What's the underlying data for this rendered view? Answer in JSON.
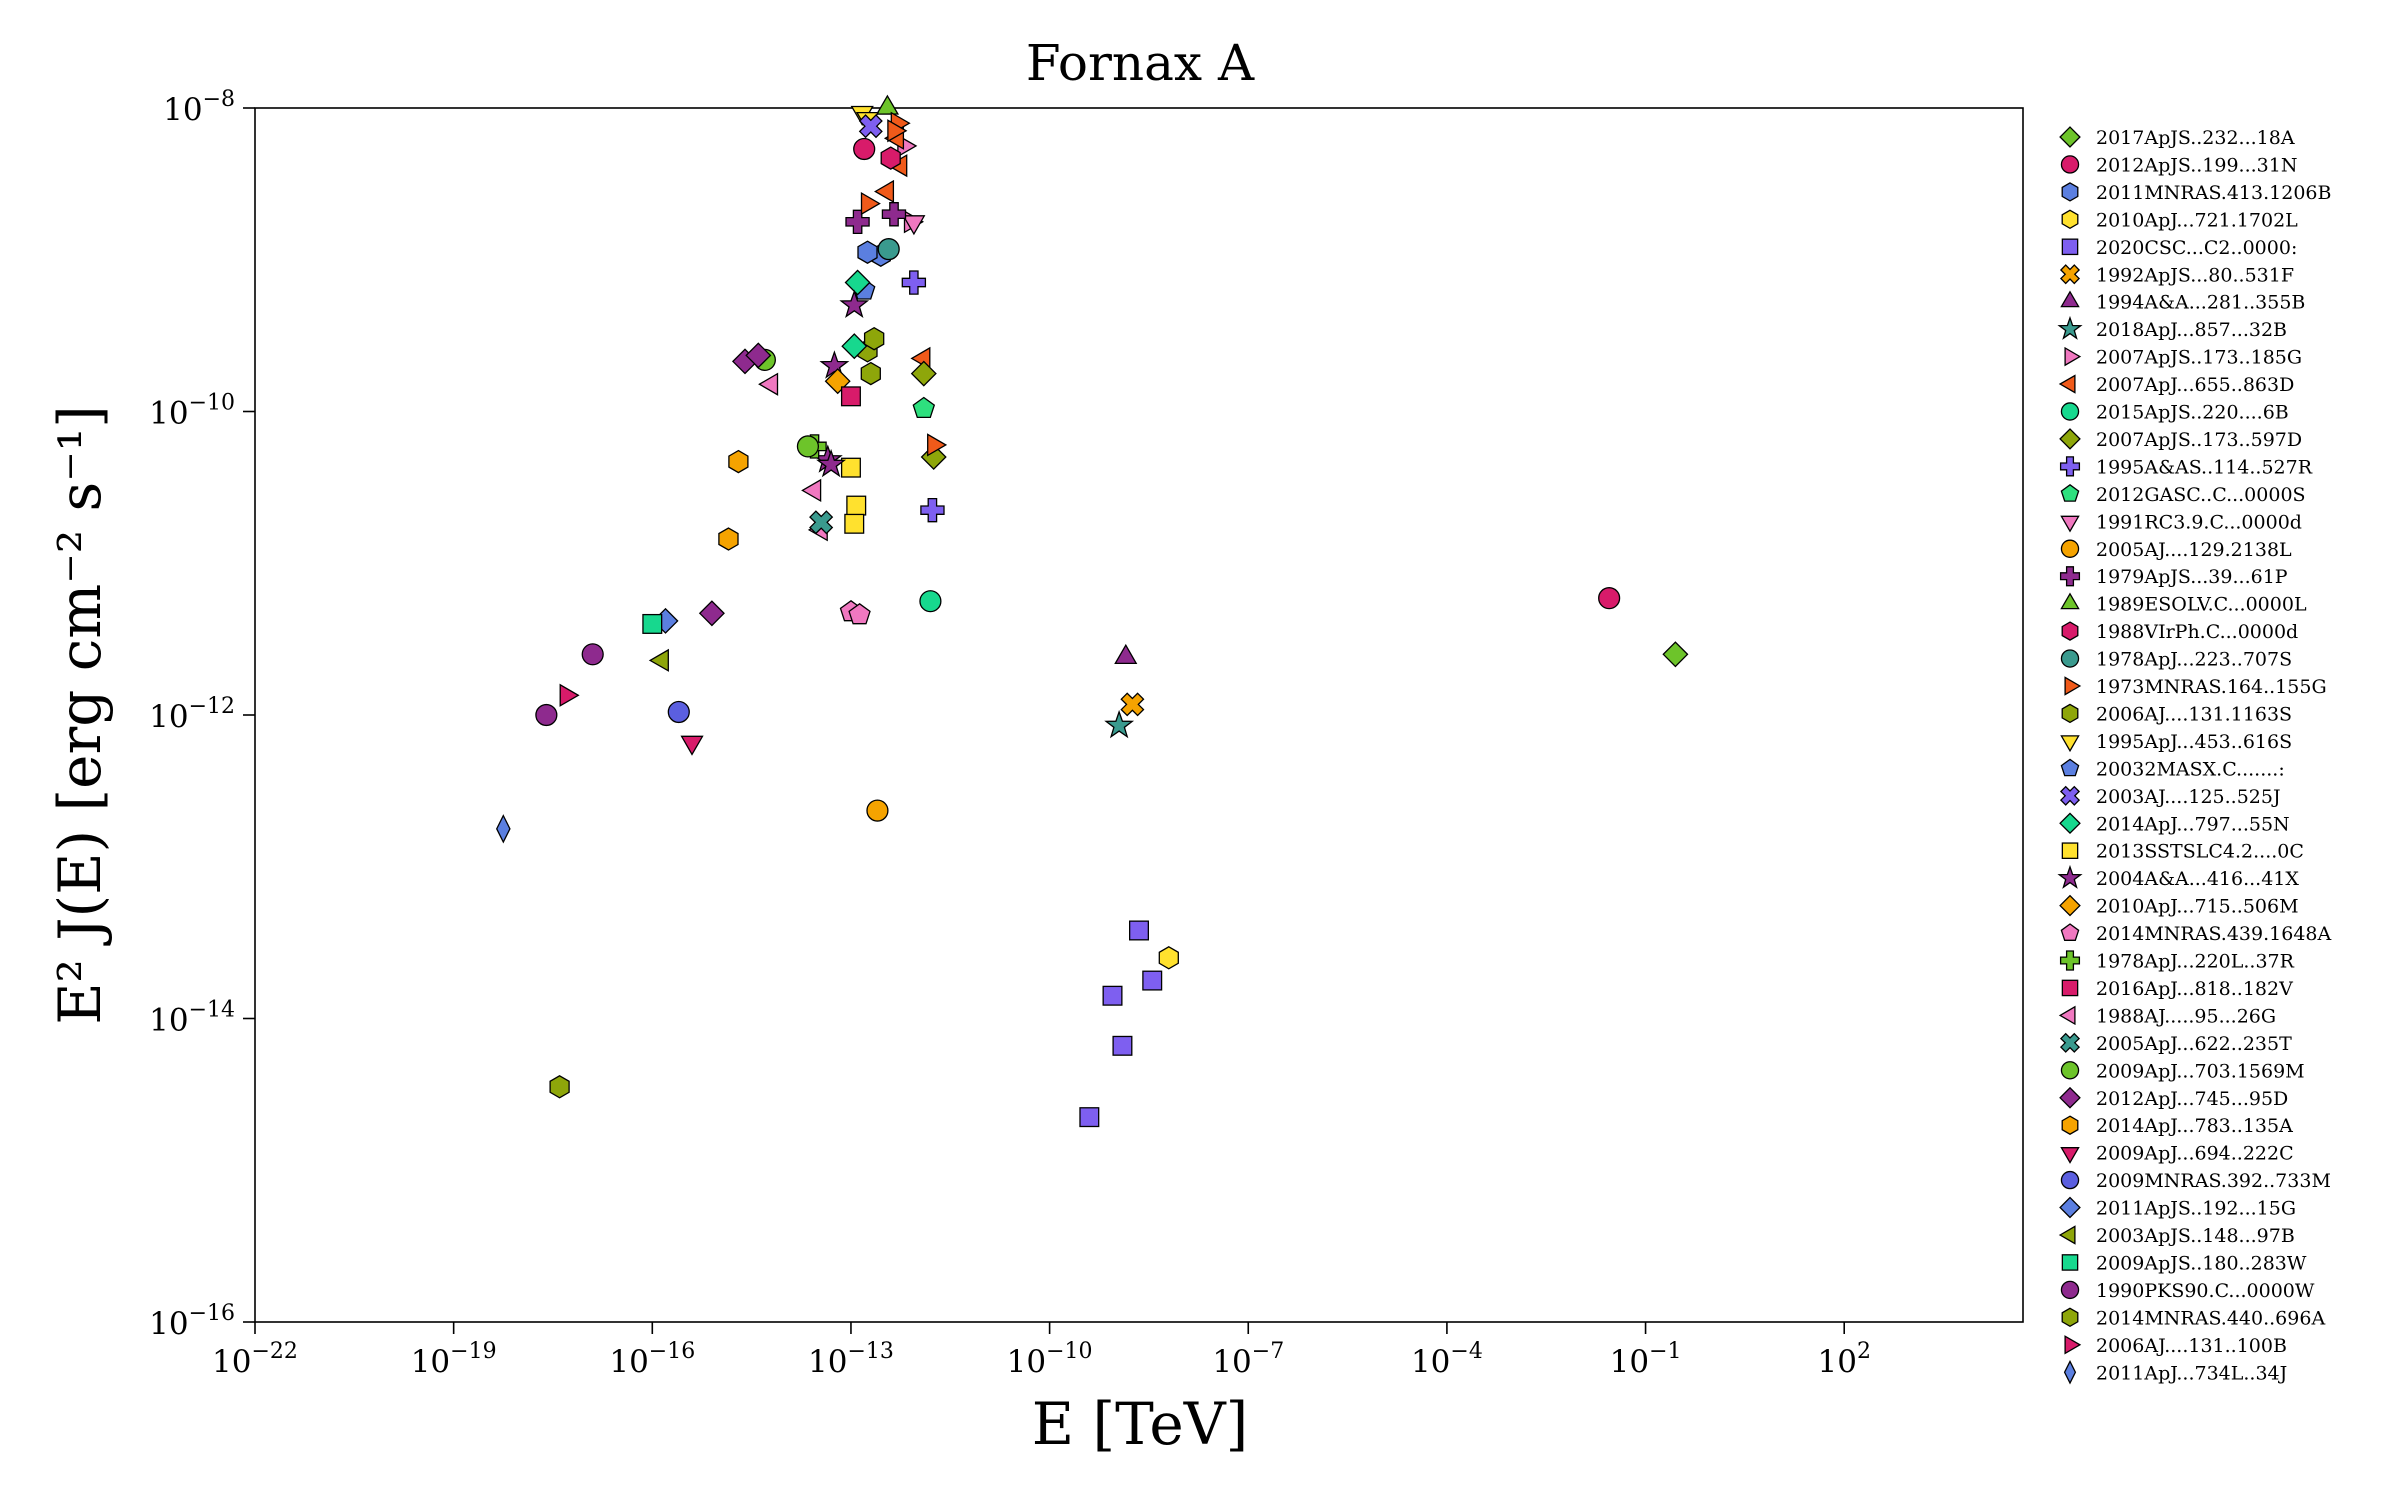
{
  "chart_data": {
    "type": "scatter",
    "title": "Fornax A",
    "xlabel": "E [TeV]",
    "ylabel": "E² J(E) [erg cm⁻² s⁻¹]",
    "x_scale": "log",
    "y_scale": "log",
    "xlim_log10": [
      -22,
      4.7
    ],
    "ylim_log10": [
      -16,
      -8
    ],
    "x_ticks": [
      {
        "exp": -22,
        "base": "10",
        "sup": "−22"
      },
      {
        "exp": -19,
        "base": "10",
        "sup": "−19"
      },
      {
        "exp": -16,
        "base": "10",
        "sup": "−16"
      },
      {
        "exp": -13,
        "base": "10",
        "sup": "−13"
      },
      {
        "exp": -10,
        "base": "10",
        "sup": "−10"
      },
      {
        "exp": -7,
        "base": "10",
        "sup": "−7"
      },
      {
        "exp": -4,
        "base": "10",
        "sup": "−4"
      },
      {
        "exp": -1,
        "base": "10",
        "sup": "−1"
      },
      {
        "exp": 2,
        "base": "10",
        "sup": "2"
      }
    ],
    "y_ticks": [
      {
        "exp": -16,
        "base": "10",
        "sup": "−16"
      },
      {
        "exp": -14,
        "base": "10",
        "sup": "−14"
      },
      {
        "exp": -12,
        "base": "10",
        "sup": "−12"
      },
      {
        "exp": -10,
        "base": "10",
        "sup": "−10"
      },
      {
        "exp": -8,
        "base": "10",
        "sup": "−8"
      }
    ],
    "grid": false,
    "legend_position": "outside-right",
    "series": [
      {
        "name": "2017ApJS..232...18A",
        "marker": "diamond",
        "color": "#6dc42a",
        "points": [
          [
            -0.55,
            -11.6
          ]
        ]
      },
      {
        "name": "2012ApJS..199...31N",
        "marker": "circle",
        "color": "#d81b6a",
        "points": [
          [
            -1.55,
            -11.23
          ],
          [
            -12.8,
            -8.27
          ]
        ]
      },
      {
        "name": "2011MNRAS.413.1206B",
        "marker": "hexagon",
        "color": "#5b7fe0",
        "points": [
          [
            -12.55,
            -8.97
          ],
          [
            -12.75,
            -8.95
          ]
        ]
      },
      {
        "name": "2010ApJ...721.1702L",
        "marker": "hexagon",
        "color": "#ffe12e",
        "points": [
          [
            -8.2,
            -13.6
          ]
        ]
      },
      {
        "name": "2020CSC...C2..0000:",
        "marker": "square",
        "color": "#7e5ff0",
        "points": [
          [
            -9.4,
            -14.65
          ],
          [
            -9.05,
            -13.85
          ],
          [
            -8.9,
            -14.18
          ],
          [
            -8.65,
            -13.42
          ],
          [
            -8.45,
            -13.75
          ]
        ]
      },
      {
        "name": "1992ApJS...80..531F",
        "marker": "x",
        "color": "#f5a300",
        "points": [
          [
            -8.75,
            -11.93
          ]
        ]
      },
      {
        "name": "1994A&A...281..355B",
        "marker": "triangle-up",
        "color": "#8e2a8e",
        "points": [
          [
            -8.85,
            -11.62
          ]
        ]
      },
      {
        "name": "2018ApJ...857...32B",
        "marker": "star",
        "color": "#3a9a8e",
        "points": [
          [
            -8.95,
            -12.07
          ]
        ]
      },
      {
        "name": "2007ApJS..173..185G",
        "marker": "triangle-right",
        "color": "#f078c0",
        "points": [
          [
            -12.2,
            -8.25
          ],
          [
            -12.1,
            -8.75
          ]
        ]
      },
      {
        "name": "2007ApJ...655..863D",
        "marker": "triangle-left",
        "color": "#f05a1a",
        "points": [
          [
            -12.3,
            -8.2
          ],
          [
            -12.25,
            -8.38
          ],
          [
            -12.45,
            -8.55
          ],
          [
            -11.9,
            -9.65
          ]
        ]
      },
      {
        "name": "2015ApJS..220....6B",
        "marker": "circle",
        "color": "#17d88e",
        "points": [
          [
            -11.8,
            -11.25
          ]
        ]
      },
      {
        "name": "2007ApJS..173..597D",
        "marker": "diamond",
        "color": "#8ea60a",
        "points": [
          [
            -11.9,
            -9.75
          ],
          [
            -11.75,
            -10.3
          ]
        ]
      },
      {
        "name": "1995A&AS..114..527R",
        "marker": "plus",
        "color": "#7e5ff0",
        "points": [
          [
            -12.05,
            -9.15
          ],
          [
            -11.77,
            -10.65
          ]
        ]
      },
      {
        "name": "2012GASC..C...0000S",
        "marker": "pentagon",
        "color": "#2ee07e",
        "points": [
          [
            -11.9,
            -9.98
          ]
        ]
      },
      {
        "name": "1991RC3.9.C...0000d",
        "marker": "triangle-down",
        "color": "#f078c0",
        "points": [
          [
            -12.05,
            -8.75
          ]
        ]
      },
      {
        "name": "2005AJ....129.2138L",
        "marker": "circle",
        "color": "#f5a300",
        "points": [
          [
            -12.6,
            -12.63
          ]
        ]
      },
      {
        "name": "1979ApJS...39...61P",
        "marker": "plus",
        "color": "#8e2a8e",
        "points": [
          [
            -12.9,
            -8.75
          ],
          [
            -12.35,
            -8.7
          ]
        ]
      },
      {
        "name": "1989ESOLV.C...0000L",
        "marker": "triangle-up",
        "color": "#6dc42a",
        "points": [
          [
            -12.45,
            -8.0
          ]
        ]
      },
      {
        "name": "1988VIrPh.C...0000d",
        "marker": "hexagon",
        "color": "#d81b6a",
        "points": [
          [
            -12.4,
            -8.33
          ]
        ]
      },
      {
        "name": "1978ApJ...223..707S",
        "marker": "circle",
        "color": "#3a9a8e",
        "points": [
          [
            -12.43,
            -8.93
          ]
        ]
      },
      {
        "name": "1973MNRAS.164..155G",
        "marker": "triangle-right",
        "color": "#f05a1a",
        "points": [
          [
            -12.75,
            -8.63
          ],
          [
            -11.75,
            -10.22
          ],
          [
            -12.3,
            -8.1
          ],
          [
            -12.35,
            -8.15
          ]
        ]
      },
      {
        "name": "2006AJ....131.1163S",
        "marker": "hexagon",
        "color": "#8ea60a",
        "points": [
          [
            -12.75,
            -9.6
          ],
          [
            -12.65,
            -9.52
          ],
          [
            -12.7,
            -9.75
          ]
        ]
      },
      {
        "name": "1995ApJ...453..616S",
        "marker": "triangle-down",
        "color": "#ffe12e",
        "points": [
          [
            -12.83,
            -8.03
          ],
          [
            -12.75,
            -8.07
          ]
        ]
      },
      {
        "name": "20032MASX.C.......:",
        "marker": "pentagon",
        "color": "#5b7fe0",
        "points": [
          [
            -12.8,
            -9.2
          ]
        ]
      },
      {
        "name": "2003AJ....125..525J",
        "marker": "x",
        "color": "#7e5ff0",
        "points": [
          [
            -12.7,
            -8.12
          ]
        ]
      },
      {
        "name": "2014ApJ...797...55N",
        "marker": "diamond",
        "color": "#17d88e",
        "points": [
          [
            -12.95,
            -9.57
          ],
          [
            -12.9,
            -9.15
          ]
        ]
      },
      {
        "name": "2013SSTSLC4.2....0C",
        "marker": "square",
        "color": "#ffe12e",
        "points": [
          [
            -13.0,
            -10.37
          ],
          [
            -12.92,
            -10.62
          ],
          [
            -12.95,
            -10.74
          ]
        ]
      },
      {
        "name": "2004A&A...416...41X",
        "marker": "star",
        "color": "#8e2a8e",
        "points": [
          [
            -13.35,
            -10.32
          ],
          [
            -13.25,
            -9.7
          ],
          [
            -12.95,
            -9.3
          ],
          [
            -13.3,
            -10.35
          ]
        ]
      },
      {
        "name": "2010ApJ...715..506M",
        "marker": "diamond",
        "color": "#f5a300",
        "points": [
          [
            -13.2,
            -9.8
          ]
        ]
      },
      {
        "name": "2014MNRAS.439.1648A",
        "marker": "pentagon",
        "color": "#f078c0",
        "points": [
          [
            -13.0,
            -11.32
          ],
          [
            -12.87,
            -11.34
          ]
        ]
      },
      {
        "name": "1978ApJ...220L..37R",
        "marker": "plus",
        "color": "#6dc42a",
        "points": [
          [
            -13.55,
            -10.23
          ]
        ]
      },
      {
        "name": "2016ApJ...818..182V",
        "marker": "square",
        "color": "#d81b6a",
        "points": [
          [
            -13.0,
            -9.9
          ]
        ]
      },
      {
        "name": "1988AJ.....95...26G",
        "marker": "triangle-left",
        "color": "#f078c0",
        "points": [
          [
            -13.55,
            -10.52
          ],
          [
            -13.45,
            -10.78
          ],
          [
            -14.2,
            -9.82
          ]
        ]
      },
      {
        "name": "2005ApJ...622..235T",
        "marker": "x",
        "color": "#3a9a8e",
        "points": [
          [
            -13.45,
            -10.73
          ]
        ]
      },
      {
        "name": "2009ApJ...703.1569M",
        "marker": "circle",
        "color": "#6dc42a",
        "points": [
          [
            -13.65,
            -10.23
          ],
          [
            -14.3,
            -9.66
          ]
        ]
      },
      {
        "name": "2012ApJ...745...95D",
        "marker": "diamond",
        "color": "#8e2a8e",
        "points": [
          [
            -15.1,
            -11.33
          ],
          [
            -14.6,
            -9.67
          ],
          [
            -14.4,
            -9.63
          ]
        ]
      },
      {
        "name": "2014ApJ...783..135A",
        "marker": "hexagon",
        "color": "#f5a300",
        "points": [
          [
            -14.7,
            -10.33
          ],
          [
            -14.85,
            -10.84
          ]
        ]
      },
      {
        "name": "2009ApJ...694..222C",
        "marker": "triangle-down",
        "color": "#d81b6a",
        "points": [
          [
            -15.4,
            -12.18
          ]
        ]
      },
      {
        "name": "2009MNRAS.392..733M",
        "marker": "circle",
        "color": "#5b5fe0",
        "points": [
          [
            -15.6,
            -11.98
          ]
        ]
      },
      {
        "name": "2011ApJS..192...15G",
        "marker": "diamond",
        "color": "#5b7fe0",
        "points": [
          [
            -15.8,
            -11.38
          ]
        ]
      },
      {
        "name": "2003ApJS..148...97B",
        "marker": "triangle-left",
        "color": "#8ea60a",
        "points": [
          [
            -15.85,
            -11.64
          ]
        ]
      },
      {
        "name": "2009ApJS..180..283W",
        "marker": "square",
        "color": "#17d88e",
        "points": [
          [
            -16.0,
            -11.4
          ]
        ]
      },
      {
        "name": "1990PKS90.C...0000W",
        "marker": "circle",
        "color": "#8e2a8e",
        "points": [
          [
            -17.6,
            -12.0
          ],
          [
            -16.9,
            -11.6
          ]
        ]
      },
      {
        "name": "2014MNRAS.440..696A",
        "marker": "hexagon",
        "color": "#8ea60a",
        "points": [
          [
            -17.4,
            -14.45
          ]
        ]
      },
      {
        "name": "2006AJ....131..100B",
        "marker": "triangle-right",
        "color": "#d81b6a",
        "points": [
          [
            -17.3,
            -11.87
          ]
        ]
      },
      {
        "name": "2011ApJ...734L..34J",
        "marker": "thin-diamond",
        "color": "#5b7fe0",
        "points": [
          [
            -18.25,
            -12.75
          ]
        ]
      }
    ]
  }
}
